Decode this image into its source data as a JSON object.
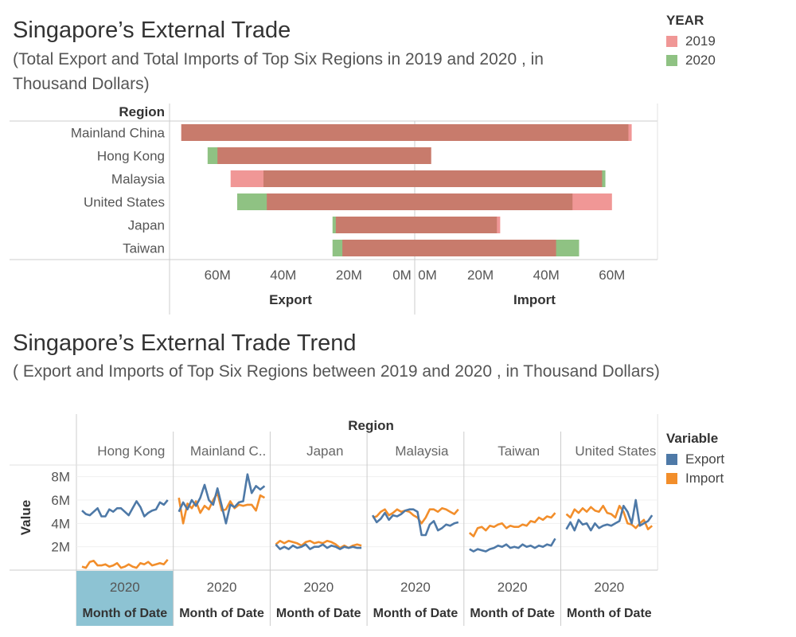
{
  "chart1": {
    "title": "Singapore’s External Trade",
    "subtitle": "(Total Export and Total Imports of Top Six Regions in 2019 and 2020 , in Thousand Dollars)",
    "legend_title": "YEAR",
    "colors": {
      "2019": "#f09796",
      "2020": "#8fc283",
      "overlap": "#c87b6c"
    }
  },
  "chart2": {
    "title": "Singapore’s External Trade Trend",
    "subtitle": "( Export and Imports of Top Six Regions between 2019 and 2020 , in Thousand Dollars)",
    "legend_title": "Variable",
    "colors": {
      "Export": "#4e79a7",
      "Import": "#f28e2b"
    }
  },
  "chart_data": [
    {
      "type": "bar",
      "region_header": "Region",
      "categories": [
        "Mainland China",
        "Hong Kong",
        "Malaysia",
        "United States",
        "Japan",
        "Taiwan"
      ],
      "panels": [
        "Export",
        "Import"
      ],
      "series": [
        {
          "name": "2019",
          "export": [
            71,
            60,
            56,
            45,
            24,
            22
          ],
          "import": [
            66,
            5,
            57,
            60,
            26,
            43
          ]
        },
        {
          "name": "2020",
          "export": [
            71,
            63,
            46,
            54,
            25,
            25
          ],
          "import": [
            65,
            5,
            58,
            48,
            25,
            50
          ]
        }
      ],
      "export_ticks": [
        "60M",
        "40M",
        "20M",
        "0M"
      ],
      "import_ticks": [
        "0M",
        "20M",
        "40M",
        "60M"
      ],
      "xlim": [
        0,
        75
      ],
      "legend": [
        "2019",
        "2020"
      ],
      "legend_position": "top-right"
    },
    {
      "type": "line",
      "column_header": "Region",
      "ylabel": "Value",
      "yticks": [
        "2M",
        "4M",
        "6M",
        "8M"
      ],
      "ylim": [
        0,
        9
      ],
      "xtick": "2020",
      "xlabel": "Month of Date",
      "legend": [
        "Export",
        "Import"
      ],
      "legend_position": "right",
      "panels": [
        {
          "region": "Hong Kong",
          "label": "Hong Kong",
          "export": [
            5.1,
            4.8,
            4.7,
            5.0,
            5.3,
            4.6,
            4.6,
            5.2,
            5.0,
            5.3,
            5.3,
            5.0,
            4.7,
            5.3,
            5.9,
            5.4,
            4.6,
            4.9,
            5.1,
            5.2,
            5.8,
            5.6,
            6.0
          ],
          "import": [
            0.3,
            0.2,
            0.7,
            0.8,
            0.4,
            0.4,
            0.5,
            0.3,
            0.4,
            0.6,
            0.2,
            0.3,
            0.5,
            0.3,
            0.2,
            0.6,
            0.5,
            0.7,
            0.4,
            0.5,
            0.6,
            0.5,
            0.9
          ]
        },
        {
          "region": "Mainland China",
          "label": "Mainland C..",
          "export": [
            5.0,
            5.8,
            5.2,
            6.0,
            5.5,
            6.2,
            7.3,
            6.0,
            5.6,
            7.0,
            5.5,
            4.0,
            5.6,
            5.4,
            5.8,
            5.9,
            8.2,
            6.6,
            7.2,
            6.9,
            7.2
          ],
          "import": [
            6.2,
            4.0,
            5.7,
            5.3,
            5.9,
            4.9,
            5.5,
            5.2,
            6.0,
            6.6,
            5.1,
            5.2,
            5.9,
            5.3,
            5.6,
            5.5,
            5.6,
            5.6,
            5.1,
            6.4,
            6.2
          ]
        },
        {
          "region": "Japan",
          "label": "Japan",
          "export": [
            2.2,
            1.8,
            2.0,
            1.8,
            2.1,
            1.9,
            2.0,
            2.2,
            1.8,
            2.0,
            2.0,
            2.2,
            1.9,
            2.1,
            2.0,
            1.8,
            2.0,
            1.9,
            2.0,
            1.9,
            1.9
          ],
          "import": [
            2.2,
            2.5,
            2.3,
            2.5,
            2.4,
            2.3,
            2.1,
            2.4,
            2.5,
            2.3,
            2.4,
            2.3,
            2.5,
            2.4,
            2.2,
            1.9,
            2.1,
            1.9,
            2.1,
            2.2,
            2.1
          ]
        },
        {
          "region": "Malaysia",
          "label": "Malaysia",
          "export": [
            4.7,
            4.1,
            4.4,
            4.9,
            4.3,
            4.7,
            4.6,
            4.8,
            5.1,
            5.2,
            5.2,
            5.0,
            3.0,
            3.0,
            3.9,
            4.2,
            3.4,
            3.6,
            3.9,
            3.8,
            4.0,
            4.1
          ],
          "import": [
            4.5,
            4.6,
            5.0,
            5.2,
            4.7,
            4.9,
            5.2,
            5.0,
            5.1,
            5.0,
            4.7,
            4.5,
            4.0,
            4.5,
            5.2,
            5.2,
            5.0,
            5.3,
            5.2,
            5.0,
            4.8,
            5.2
          ]
        },
        {
          "region": "Taiwan",
          "label": "Taiwan",
          "export": [
            1.8,
            1.6,
            1.8,
            1.7,
            1.6,
            1.8,
            1.9,
            2.1,
            2.0,
            2.2,
            1.9,
            2.0,
            1.9,
            2.2,
            2.0,
            2.1,
            1.9,
            2.1,
            2.0,
            2.2,
            2.1,
            2.7
          ],
          "import": [
            3.2,
            2.9,
            3.6,
            3.7,
            3.4,
            3.8,
            3.7,
            3.9,
            4.0,
            3.6,
            3.8,
            3.7,
            3.7,
            3.9,
            3.8,
            4.2,
            4.1,
            4.5,
            4.3,
            4.6,
            4.5,
            4.9
          ]
        },
        {
          "region": "United States",
          "label": "United States",
          "export": [
            3.5,
            4.1,
            3.4,
            4.3,
            3.9,
            4.0,
            3.4,
            4.0,
            3.6,
            3.8,
            3.9,
            3.8,
            4.0,
            4.2,
            5.5,
            5.0,
            4.0,
            6.0,
            3.8,
            4.0,
            4.2,
            4.7
          ],
          "import": [
            4.8,
            4.5,
            5.2,
            4.9,
            5.3,
            5.0,
            5.4,
            5.1,
            5.0,
            5.5,
            4.9,
            4.8,
            4.5,
            5.5,
            5.0,
            4.0,
            3.9,
            3.6,
            4.0,
            4.3,
            3.5,
            3.8
          ]
        }
      ]
    }
  ]
}
